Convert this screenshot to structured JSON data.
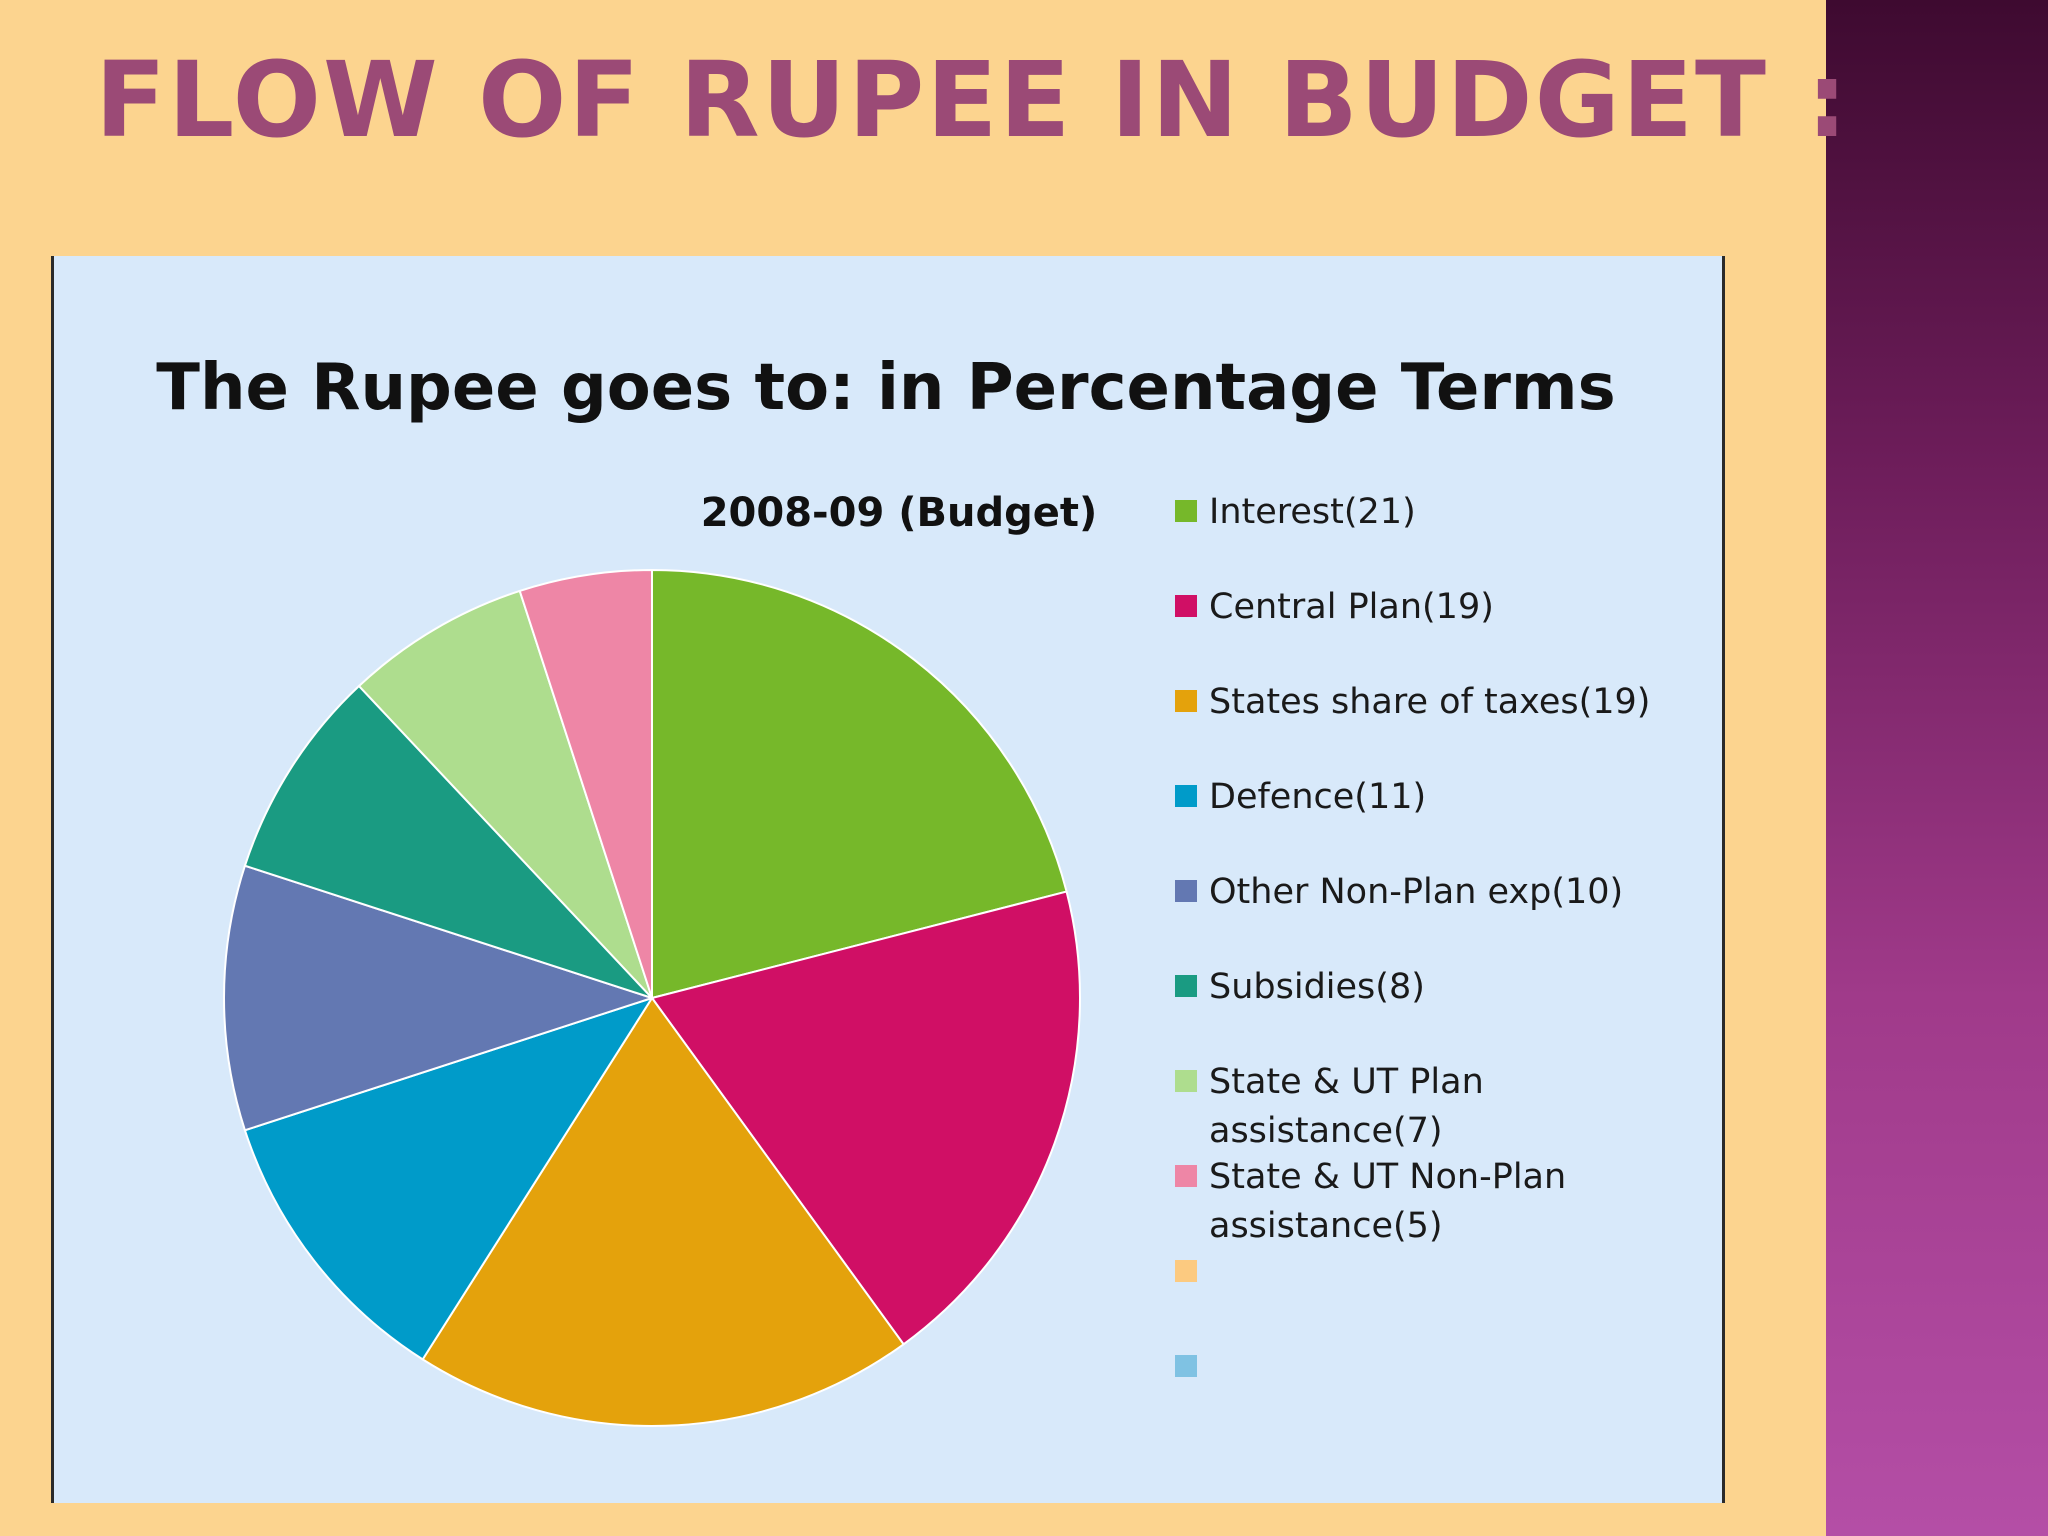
{
  "slide": {
    "title": "FLOW OF RUPEE IN BUDGET  :",
    "colors": {
      "background": "#fcd48f",
      "title": "#9b4a76",
      "chart_panel": "#d8e9fa"
    }
  },
  "chart_data": {
    "type": "pie",
    "title": "The Rupee goes to: in Percentage Terms",
    "subtitle": "2008-09 (Budget)",
    "legend_position": "right",
    "slices": [
      {
        "label": "Interest(21)",
        "value": 21,
        "color": "#76b82a"
      },
      {
        "label": "Central Plan(19)",
        "value": 19,
        "color": "#d00f65"
      },
      {
        "label": "States share of taxes(19)",
        "value": 19,
        "color": "#e4a20c"
      },
      {
        "label": "Defence(11)",
        "value": 11,
        "color": "#009bc9"
      },
      {
        "label": "Other Non-Plan exp(10)",
        "value": 10,
        "color": "#6378b2"
      },
      {
        "label": "Subsidies(8)",
        "value": 8,
        "color": "#1a9b82"
      },
      {
        "label": "State & UT Plan assistance(7)",
        "lines": [
          "State & UT Plan",
          "assistance(7)"
        ],
        "value": 7,
        "color": "#aedd8e"
      },
      {
        "label": "State & UT Non-Plan assistance(5)",
        "lines": [
          "State & UT Non-Plan",
          "assistance(5)"
        ],
        "value": 5,
        "color": "#ee86a6"
      }
    ],
    "legend_extra_swatches": [
      {
        "color": "#fcca80"
      },
      {
        "color": "#7fc2e3"
      }
    ]
  }
}
